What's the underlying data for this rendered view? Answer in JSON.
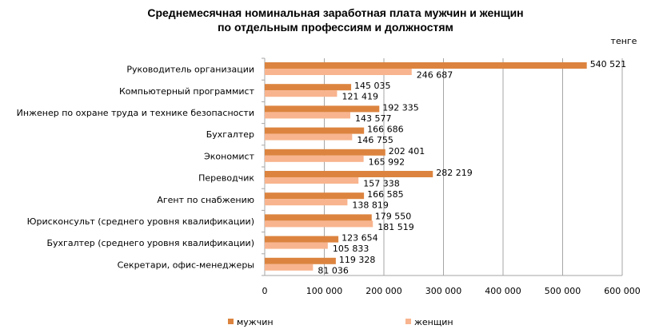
{
  "chart_data": {
    "type": "bar",
    "orientation": "horizontal",
    "title_lines": [
      "Среднемесячная номинальная заработная плата мужчин и женщин",
      "по отдельным профессиям и должностям"
    ],
    "unit_label": "тенге",
    "categories": [
      "Руководитель организации",
      "Компьютерный программист",
      "Инженер по охране труда и технике безопасности",
      "Бухгалтер",
      "Экономист",
      "Переводчик",
      "Агент по снабжению",
      "Юрисконсульт (среднего уровня квалификации)",
      "Бухгалтер (среднего уровня  квалификации)",
      "Секретари, офис-менеджеры"
    ],
    "series": [
      {
        "name": "мужчин",
        "color": "#DC843F",
        "values": [
          540521,
          145035,
          192335,
          166686,
          202401,
          282219,
          166585,
          179550,
          123654,
          119328
        ],
        "labels": [
          "540 521",
          "145 035",
          "192 335",
          "166 686",
          "202 401",
          "282 219",
          "166 585",
          "179 550",
          "123 654",
          "119 328"
        ]
      },
      {
        "name": "женщин",
        "color": "#F8B48E",
        "values": [
          246687,
          121419,
          143577,
          146755,
          165992,
          157338,
          138819,
          181519,
          105833,
          81036
        ],
        "labels": [
          "246 687",
          "121 419",
          "143 577",
          "146 755",
          "165 992",
          "157 338",
          "138 819",
          "181 519",
          "105 833",
          "81 036"
        ]
      }
    ],
    "xlim": [
      0,
      600000
    ],
    "xticks": [
      0,
      100000,
      200000,
      300000,
      400000,
      500000,
      600000
    ],
    "xtick_labels": [
      "0",
      "100 000",
      "200 000",
      "300 000",
      "400 000",
      "500 000",
      "600 000"
    ],
    "grid": true,
    "legend": "bottom"
  }
}
